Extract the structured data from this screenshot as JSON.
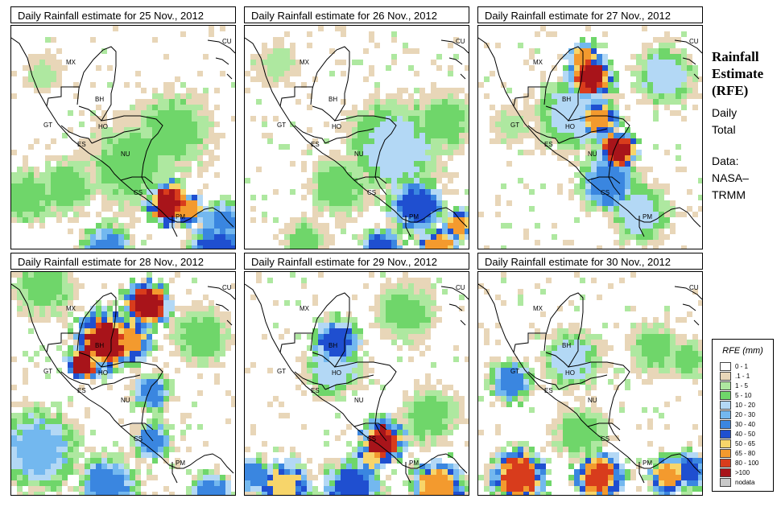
{
  "panels": [
    {
      "title": "Daily Rainfall estimate for  25 Nov., 2012",
      "day": 25
    },
    {
      "title": "Daily Rainfall estimate for  26 Nov., 2012",
      "day": 26
    },
    {
      "title": "Daily Rainfall estimate for  27 Nov., 2012",
      "day": 27
    },
    {
      "title": "Daily Rainfall estimate for  28 Nov., 2012",
      "day": 28
    },
    {
      "title": "Daily Rainfall estimate for  29 Nov., 2012",
      "day": 29
    },
    {
      "title": "Daily Rainfall estimate for  30 Nov., 2012",
      "day": 30
    }
  ],
  "country_labels": [
    "MX",
    "BH",
    "GT",
    "HO",
    "ES",
    "NU",
    "CS",
    "PM",
    "CU"
  ],
  "side": {
    "title_lines": [
      "Rainfall",
      "Estimate",
      "(RFE)"
    ],
    "info_lines": [
      "Daily",
      "Total"
    ],
    "data_lines": [
      "Data:",
      "NASA–",
      "TRMM"
    ]
  },
  "legend": {
    "title": "RFE (mm)",
    "items": [
      {
        "label": "0 - 1",
        "color": "#ffffff"
      },
      {
        "label": ".1 - 1",
        "color": "#e8d6b8"
      },
      {
        "label": "1 - 5",
        "color": "#aee8a0"
      },
      {
        "label": "5 - 10",
        "color": "#6fd66a"
      },
      {
        "label": "10 - 20",
        "color": "#b3d8f5"
      },
      {
        "label": "20 - 30",
        "color": "#73b8ef"
      },
      {
        "label": "30 - 40",
        "color": "#3a86e0"
      },
      {
        "label": "40 - 50",
        "color": "#1f4fd0"
      },
      {
        "label": "50 - 65",
        "color": "#f7d56a"
      },
      {
        "label": "65 - 80",
        "color": "#f39a2e"
      },
      {
        "label": "80 - 100",
        "color": "#d83c1c"
      },
      {
        "label": ">100",
        "color": "#a8141a"
      },
      {
        "label": "nodata",
        "color": "#c8c8c8"
      }
    ]
  }
}
